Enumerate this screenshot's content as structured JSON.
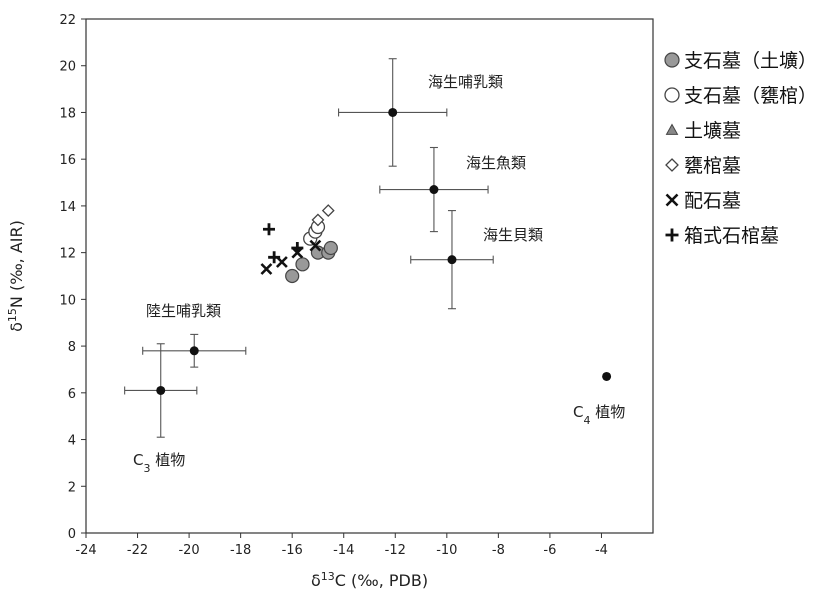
{
  "chart_data": {
    "type": "scatter",
    "title": "",
    "xlabel": {
      "pre": "δ",
      "sup": "13",
      "post": "C (‰, PDB)"
    },
    "ylabel": {
      "pre": "δ",
      "sup": "15",
      "post": "N (‰, AIR)"
    },
    "xlim": [
      -24,
      -2
    ],
    "ylim": [
      0,
      22
    ],
    "xticks": [
      -24,
      -22,
      -20,
      -18,
      -16,
      -14,
      -12,
      -10,
      -8,
      -6,
      -4
    ],
    "yticks": [
      0,
      2,
      4,
      6,
      8,
      10,
      12,
      14,
      16,
      18,
      20,
      22
    ],
    "grid": false,
    "legend_position": "right",
    "reference_points": [
      {
        "label": "海生哺乳類",
        "x": -12.1,
        "y": 18.0,
        "xerr": 2.1,
        "yerr": 2.3
      },
      {
        "label": "海生魚類",
        "x": -10.5,
        "y": 14.7,
        "xerr": 2.1,
        "yerr": 1.8
      },
      {
        "label": "海生貝類",
        "x": -9.8,
        "y": 11.7,
        "xerr": 1.6,
        "yerr": 2.1
      },
      {
        "label": "陸生哺乳類",
        "x": -19.8,
        "y": 7.8,
        "xerr": 2.0,
        "yerr": 0.7
      },
      {
        "label": "C3植物",
        "x": -21.1,
        "y": 6.1,
        "xerr": 1.4,
        "yerr": 2.0
      },
      {
        "label": "C4植物",
        "x": -3.8,
        "y": 6.7,
        "xerr": 0,
        "yerr": 0
      }
    ],
    "reference_annotations": [
      {
        "text": "海生哺乳類"
      },
      {
        "text": "海生魚類"
      },
      {
        "text": "海生貝類"
      },
      {
        "text": "陸生哺乳類"
      },
      {
        "base": "C",
        "sub": "3",
        "rest": " 植物"
      },
      {
        "base": "C",
        "sub": "4",
        "rest": " 植物"
      }
    ],
    "series": [
      {
        "name": "支石墓（土壙）",
        "marker": "circle-filled",
        "color": "#999999",
        "points": [
          [
            -16.0,
            11.0
          ],
          [
            -15.6,
            11.5
          ],
          [
            -15.0,
            12.0
          ],
          [
            -14.6,
            12.0
          ],
          [
            -14.5,
            12.2
          ]
        ]
      },
      {
        "name": "支石墓（甕棺）",
        "marker": "circle-open",
        "color": "#ffffff",
        "points": [
          [
            -15.3,
            12.6
          ],
          [
            -15.1,
            12.9
          ],
          [
            -15.0,
            13.1
          ]
        ]
      },
      {
        "name": "土壙墓",
        "marker": "triangle",
        "color": "#888888",
        "points": []
      },
      {
        "name": "甕棺墓",
        "marker": "diamond-open",
        "color": "#ffffff",
        "points": [
          [
            -15.0,
            13.4
          ],
          [
            -14.6,
            13.8
          ]
        ]
      },
      {
        "name": "配石墓",
        "marker": "x",
        "color": "#111111",
        "points": [
          [
            -17.0,
            11.3
          ],
          [
            -16.4,
            11.6
          ],
          [
            -15.8,
            12.0
          ],
          [
            -15.1,
            12.3
          ]
        ]
      },
      {
        "name": "箱式石棺墓",
        "marker": "plus",
        "color": "#111111",
        "points": [
          [
            -16.9,
            13.0
          ],
          [
            -16.7,
            11.8
          ],
          [
            -15.8,
            12.2
          ]
        ]
      }
    ]
  }
}
